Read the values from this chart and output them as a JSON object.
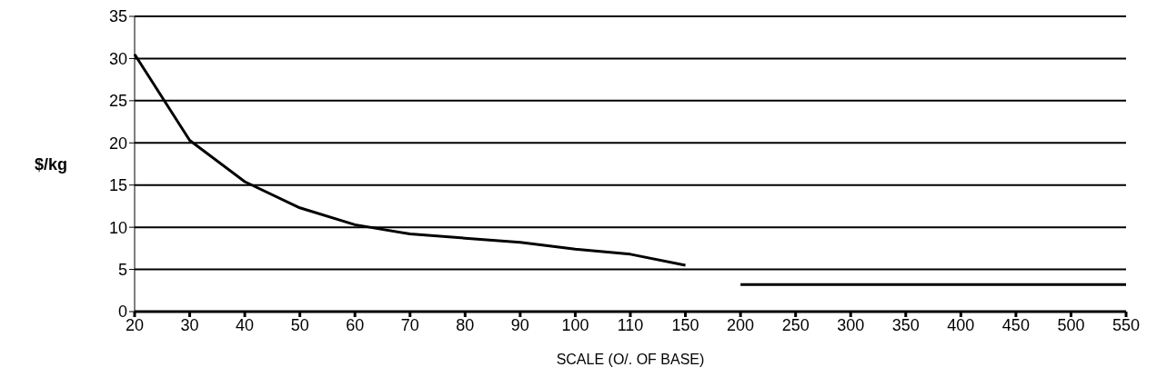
{
  "chart_data": {
    "type": "line",
    "xlabel": "SCALE (O/. OF BASE)",
    "ylabel": "$/kg",
    "categories": [
      "20",
      "30",
      "40",
      "50",
      "60",
      "70",
      "80",
      "90",
      "100",
      "110",
      "150",
      "200",
      "250",
      "300",
      "350",
      "400",
      "450",
      "500",
      "550"
    ],
    "series": [
      {
        "color": "#000000",
        "values": [
          30.5,
          20.3,
          15.4,
          12.3,
          10.3,
          9.2,
          8.7,
          8.2,
          7.4,
          6.8,
          5.5,
          null,
          null,
          null,
          null,
          null,
          null,
          null,
          null
        ]
      },
      {
        "color": "#000000",
        "values": [
          null,
          null,
          null,
          null,
          null,
          null,
          null,
          null,
          null,
          null,
          null,
          3.2,
          3.2,
          3.2,
          3.2,
          3.2,
          3.2,
          3.2,
          3.2
        ]
      }
    ],
    "ylim": [
      0,
      35
    ],
    "yticks": [
      0,
      5,
      10,
      15,
      20,
      25,
      30,
      35
    ],
    "grid": "y",
    "marker": "none",
    "line_style": "solid"
  }
}
